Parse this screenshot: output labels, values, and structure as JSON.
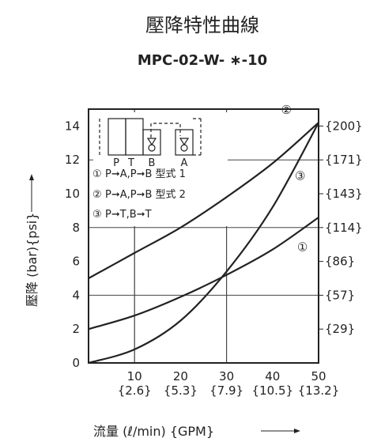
{
  "header": {
    "title": "壓降特性曲線",
    "subtitle": "MPC-02-W- ∗-10"
  },
  "legend_box": {
    "ports": [
      "P",
      "T",
      "B",
      "A"
    ],
    "items": [
      {
        "marker": "①",
        "text": "P➞A,P➞B 型式 1"
      },
      {
        "marker": "②",
        "text": "P➞A,P➞B 型式 2"
      },
      {
        "marker": "③",
        "text": "P➞T,B➞T"
      }
    ]
  },
  "chart_data": {
    "type": "line",
    "title": "壓降特性曲線",
    "subtitle": "MPC-02-W- ∗-10",
    "xlabel": "流量 (ℓ/min) {GPM}",
    "ylabel": "壓降 (bar){psi}",
    "xlim": [
      0,
      50
    ],
    "ylim": [
      0,
      15
    ],
    "grid": true,
    "x_ticks": [
      {
        "value": 10,
        "label": "10",
        "sublabel": "{2.6}"
      },
      {
        "value": 20,
        "label": "20",
        "sublabel": "{5.3}"
      },
      {
        "value": 30,
        "label": "30",
        "sublabel": "{7.9}"
      },
      {
        "value": 40,
        "label": "40",
        "sublabel": "{10.5}"
      },
      {
        "value": 50,
        "label": "50",
        "sublabel": "{13.2}"
      }
    ],
    "y_ticks": [
      {
        "value": 0,
        "label": "0"
      },
      {
        "value": 2,
        "label": "2",
        "psi": "{29}"
      },
      {
        "value": 4,
        "label": "4",
        "psi": "{57}"
      },
      {
        "value": 6,
        "label": "6",
        "psi": "{86}"
      },
      {
        "value": 8,
        "label": "8",
        "psi": "{114}"
      },
      {
        "value": 10,
        "label": "10",
        "psi": "{143}"
      },
      {
        "value": 12,
        "label": "12",
        "psi": "{171}"
      },
      {
        "value": 14,
        "label": "14",
        "psi": "{200}"
      }
    ],
    "series": [
      {
        "name": "①",
        "x": [
          0,
          10,
          20,
          30,
          40,
          50
        ],
        "y": [
          2.0,
          2.8,
          3.9,
          5.2,
          6.7,
          8.6
        ],
        "label_at": [
          46.5,
          6.9
        ]
      },
      {
        "name": "②",
        "x": [
          0,
          10,
          20,
          30,
          40,
          50
        ],
        "y": [
          5.0,
          6.5,
          8.0,
          9.8,
          11.8,
          14.2
        ],
        "label_at": [
          43.0,
          15.0
        ]
      },
      {
        "name": "③",
        "x": [
          0,
          10,
          20,
          30,
          40,
          50
        ],
        "y": [
          0.0,
          0.8,
          2.5,
          5.4,
          9.2,
          14.2
        ],
        "label_at": [
          46.0,
          11.1
        ]
      }
    ]
  }
}
